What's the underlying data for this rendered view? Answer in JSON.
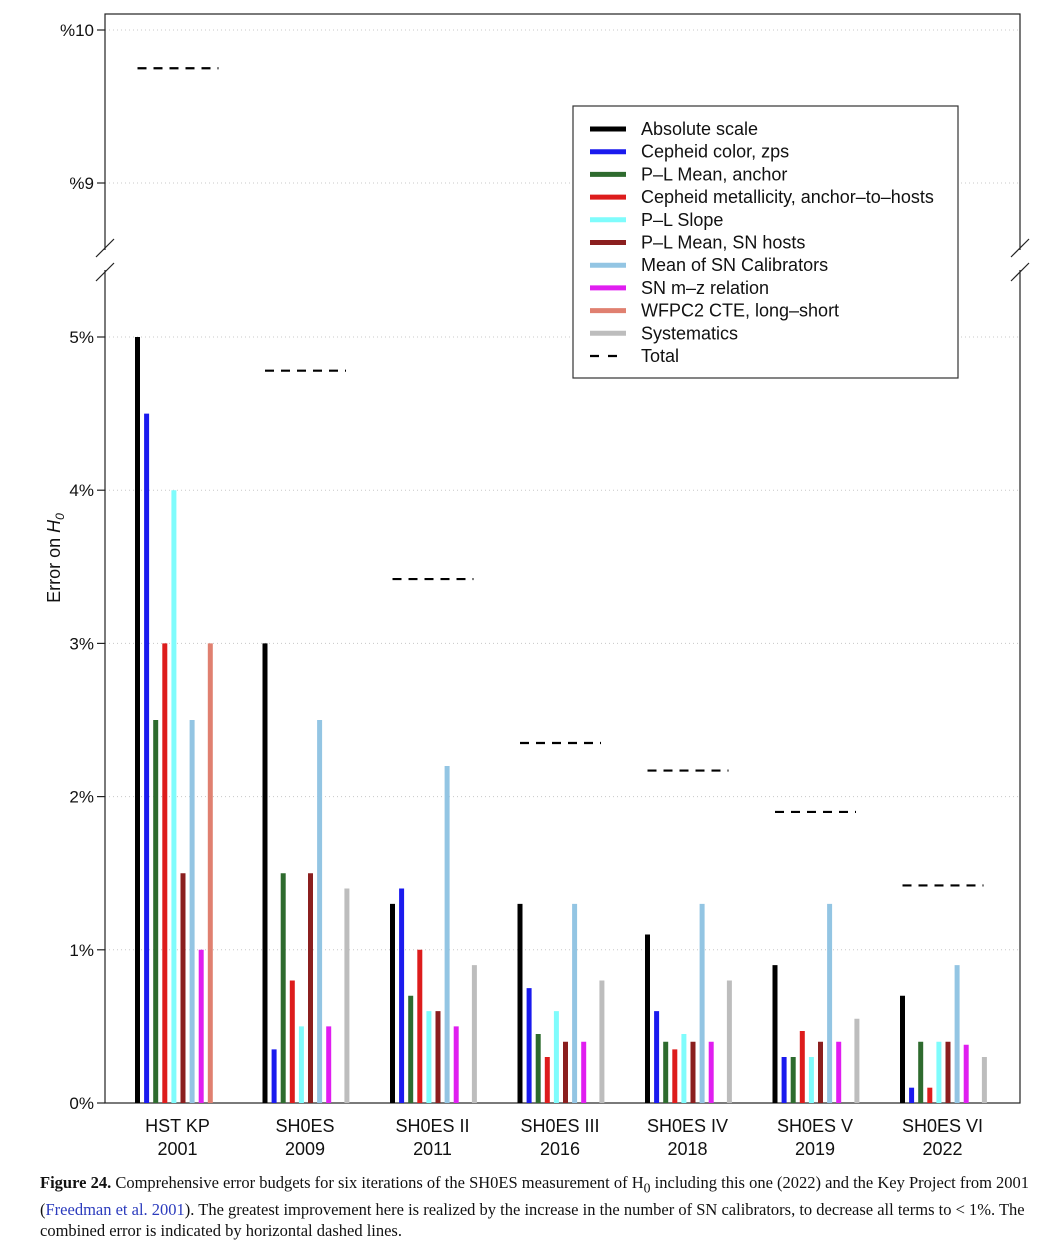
{
  "chart_data": {
    "type": "bar",
    "ylabel": "Error on H0",
    "y_axis": {
      "lower_segment": {
        "range": [
          0,
          5.5
        ],
        "ticks": [
          0,
          1,
          2,
          3,
          4,
          5
        ],
        "tick_labels": [
          "0%",
          "1%",
          "2%",
          "3%",
          "4%",
          "5%"
        ]
      },
      "upper_segment": {
        "range": [
          8.5,
          10.1
        ],
        "ticks": [
          9,
          10
        ],
        "tick_labels": [
          "%9",
          "%10"
        ]
      },
      "axis_break": true
    },
    "grid": true,
    "legend_position": "top-right",
    "categories": [
      {
        "name": "HST KP",
        "year": "2001"
      },
      {
        "name": "SH0ES",
        "year": "2009"
      },
      {
        "name": "SH0ES II",
        "year": "2011"
      },
      {
        "name": "SH0ES III",
        "year": "2016"
      },
      {
        "name": "SH0ES IV",
        "year": "2018"
      },
      {
        "name": "SH0ES V",
        "year": "2019"
      },
      {
        "name": "SH0ES VI",
        "year": "2022"
      }
    ],
    "series": [
      {
        "name": "Absolute scale",
        "color": "#000000",
        "values": [
          5.0,
          3.0,
          1.3,
          1.3,
          1.1,
          0.9,
          0.7
        ]
      },
      {
        "name": "Cepheid color, zps",
        "color": "#1a1aee",
        "values": [
          4.5,
          0.35,
          1.4,
          0.75,
          0.6,
          0.3,
          0.1
        ]
      },
      {
        "name": "P–L Mean, anchor",
        "color": "#2e6b2e",
        "values": [
          2.5,
          1.5,
          0.7,
          0.45,
          0.4,
          0.3,
          0.4
        ]
      },
      {
        "name": "Cepheid metallicity, anchor–to–hosts",
        "color": "#dd1c1c",
        "values": [
          3.0,
          0.8,
          1.0,
          0.3,
          0.35,
          0.47,
          0.1
        ]
      },
      {
        "name": "P–L Slope",
        "color": "#7ffcfc",
        "values": [
          4.0,
          0.5,
          0.6,
          0.6,
          0.45,
          0.3,
          0.4
        ]
      },
      {
        "name": "P–L Mean, SN hosts",
        "color": "#8b1f1f",
        "values": [
          1.5,
          1.5,
          0.6,
          0.4,
          0.4,
          0.4,
          0.4
        ]
      },
      {
        "name": "Mean of SN Calibrators",
        "color": "#93c5e3",
        "values": [
          2.5,
          2.5,
          2.2,
          1.3,
          1.3,
          1.3,
          0.9
        ]
      },
      {
        "name": "SN m–z relation",
        "color": "#e01ef0",
        "values": [
          1.0,
          0.5,
          0.5,
          0.4,
          0.4,
          0.4,
          0.38
        ]
      },
      {
        "name": "WFPC2 CTE, long–short",
        "color": "#e08070",
        "values": [
          3.0,
          null,
          null,
          null,
          null,
          null,
          null
        ]
      },
      {
        "name": "Systematics",
        "color": "#bdbdbd",
        "values": [
          null,
          1.4,
          0.9,
          0.8,
          0.8,
          0.55,
          0.3
        ]
      }
    ],
    "total": {
      "name": "Total",
      "color": "#000000",
      "values": [
        9.75,
        4.78,
        3.42,
        2.35,
        2.17,
        1.9,
        1.42
      ]
    }
  },
  "caption": {
    "label": "Figure 24.",
    "text_1": " Comprehensive error budgets for six iterations of the SH0ES measurement of H",
    "subscript": "0",
    "text_2": " including this one (2022) and the Key Project from 2001 (",
    "link": "Freedman et al. 2001",
    "text_3": "). The greatest improvement here is realized by the increase in the number of SN calibrators, to decrease all terms to < 1%. The combined error is indicated by horizontal dashed lines."
  }
}
